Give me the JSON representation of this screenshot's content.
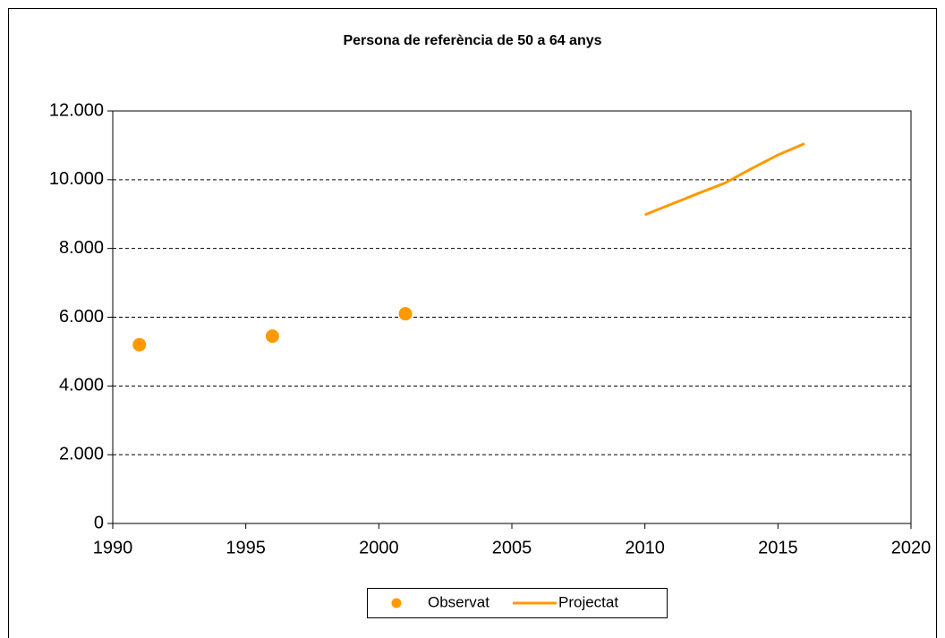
{
  "chart_data": {
    "type": "scatter",
    "title": "Persona de referència de 50 a 64 anys",
    "series": [
      {
        "name": "Observat",
        "color": "#ff9900",
        "mode": "markers",
        "x": [
          1991,
          1996,
          2001
        ],
        "values": [
          5200,
          5450,
          6100
        ]
      },
      {
        "name": "Projectat",
        "color": "#ff9900",
        "mode": "line",
        "x": [
          2010,
          2011,
          2012,
          2013,
          2014,
          2015,
          2016
        ],
        "values": [
          8980,
          9290,
          9600,
          9900,
          10320,
          10720,
          11050
        ]
      }
    ],
    "xlim": [
      1990,
      2020
    ],
    "xticks": [
      1990,
      1995,
      2000,
      2005,
      2010,
      2015,
      2020
    ],
    "ylim": [
      0,
      12000
    ],
    "yticks": [
      0,
      {
        "value": 2000,
        "label": "2.000"
      },
      {
        "value": 4000,
        "label": "4.000"
      },
      {
        "value": 6000,
        "label": "6.000"
      },
      {
        "value": 8000,
        "label": "8.000"
      },
      {
        "value": 10000,
        "label": "10.000"
      },
      {
        "value": 12000,
        "label": "12.000"
      }
    ],
    "grid": true,
    "legend": "bottom"
  }
}
